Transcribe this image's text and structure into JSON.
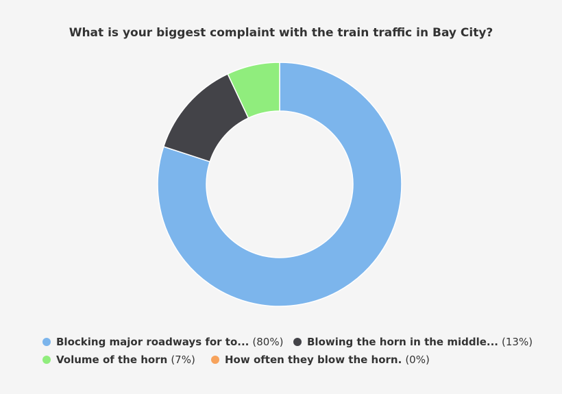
{
  "chart_data": {
    "type": "pie",
    "subtype": "donut",
    "title": "What is your biggest complaint with the train traffic in Bay City?",
    "legend_position": "bottom",
    "slices": [
      {
        "label": "Blocking major roadways for to...",
        "value": 80,
        "value_label": "(80%)",
        "color": "#7cb5ec"
      },
      {
        "label": "Blowing the horn in the middle...",
        "value": 13,
        "value_label": "(13%)",
        "color": "#434348"
      },
      {
        "label": "Volume of the horn",
        "value": 7,
        "value_label": "(7%)",
        "color": "#90ed7d"
      },
      {
        "label": "How often they blow the horn.",
        "value": 0,
        "value_label": "(0%)",
        "color": "#f7a35c"
      }
    ]
  }
}
